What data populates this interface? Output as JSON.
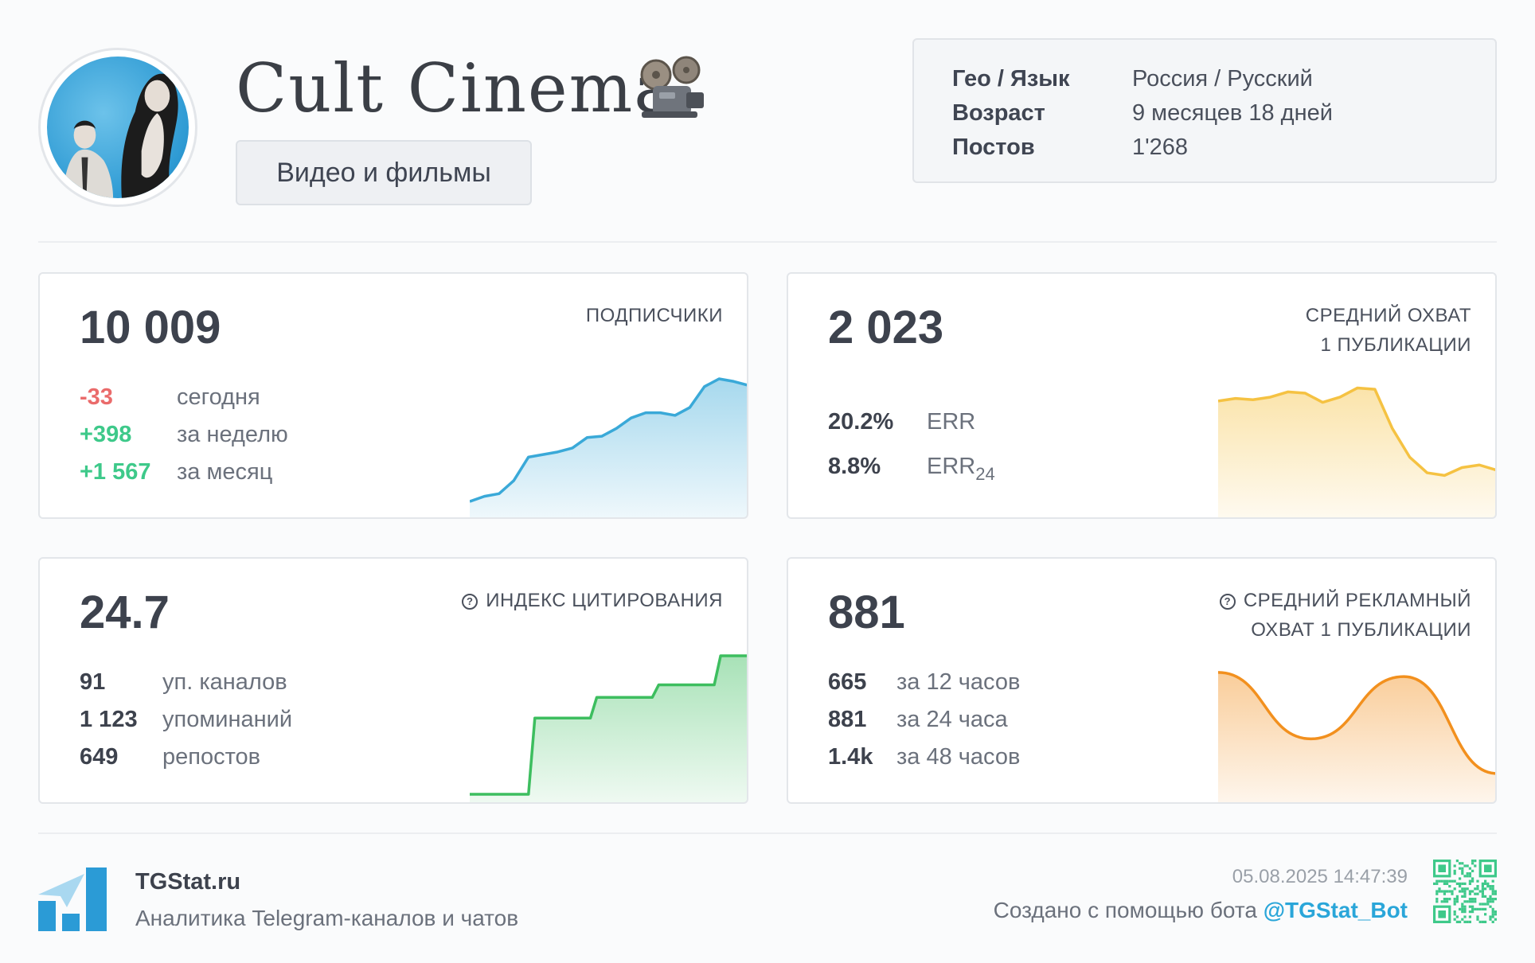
{
  "header": {
    "title": "Cult Cinema",
    "category": "Видео и фильмы",
    "icons": {
      "avatar": "channel-avatar-photo",
      "title_emoji": "film-projector-icon"
    }
  },
  "info": [
    {
      "key": "Гео / Язык",
      "value": "Россия / Русский"
    },
    {
      "key": "Возраст",
      "value": "9 месяцев 18 дней"
    },
    {
      "key": "Постов",
      "value": "1'268"
    }
  ],
  "cards": {
    "subscribers": {
      "value": "10 009",
      "label": "ПОДПИСЧИКИ",
      "rows": [
        {
          "num": "-33",
          "text": "сегодня"
        },
        {
          "num": "+398",
          "text": "за неделю"
        },
        {
          "num": "+1 567",
          "text": "за месяц"
        }
      ]
    },
    "reach": {
      "value": "2 023",
      "label_line1": "СРЕДНИЙ ОХВАТ",
      "label_line2": "1 ПУБЛИКАЦИИ",
      "rows": [
        {
          "num": "20.2%",
          "text": "ERR",
          "sub": ""
        },
        {
          "num": "8.8%",
          "text": "ERR",
          "sub": "24"
        }
      ]
    },
    "citation": {
      "value": "24.7",
      "label": "ИНДЕКС ЦИТИРОВАНИЯ",
      "rows": [
        {
          "num": "91",
          "text": "уп. каналов"
        },
        {
          "num": "1 123",
          "text": "упоминаний"
        },
        {
          "num": "649",
          "text": "репостов"
        }
      ]
    },
    "ad_reach": {
      "value": "881",
      "label_line1": "СРЕДНИЙ РЕКЛАМНЫЙ",
      "label_line2": "ОХВАТ 1 ПУБЛИКАЦИИ",
      "rows": [
        {
          "num": "665",
          "text": "за 12 часов"
        },
        {
          "num": "881",
          "text": "за 24 часа"
        },
        {
          "num": "1.4k",
          "text": "за 48 часов"
        }
      ]
    }
  },
  "chart_data": [
    {
      "type": "area",
      "y": [
        0.06,
        0.1,
        0.12,
        0.22,
        0.4,
        0.42,
        0.44,
        0.47,
        0.55,
        0.56,
        0.62,
        0.7,
        0.74,
        0.74,
        0.72,
        0.78,
        0.94,
        1.0,
        0.98,
        0.95
      ],
      "color": "#3aa9d8"
    },
    {
      "type": "area",
      "y": [
        0.83,
        0.85,
        0.84,
        0.86,
        0.9,
        0.89,
        0.82,
        0.86,
        0.93,
        0.92,
        0.62,
        0.4,
        0.28,
        0.26,
        0.32,
        0.34,
        0.3
      ],
      "color": "#f5c242"
    },
    {
      "type": "area",
      "step": true,
      "y": [
        0.0,
        0.0,
        0.55,
        0.55,
        0.7,
        0.7,
        0.79,
        0.79,
        1.0,
        1.0
      ],
      "color": "#3dbe5f"
    },
    {
      "type": "area",
      "smooth": true,
      "y": [
        0.88,
        0.4,
        0.85,
        0.15
      ],
      "color": "#f2901e"
    }
  ],
  "footer": {
    "brand": "TGStat.ru",
    "brand_sub": "Аналитика Telegram-каналов и чатов",
    "timestamp": "05.08.2025 14:47:39",
    "created_prefix": "Создано с помощью бота ",
    "bot": "@TGStat_Bot",
    "icons": {
      "logo": "tgstat-logo-icon",
      "qr": "qr-code-icon"
    }
  }
}
